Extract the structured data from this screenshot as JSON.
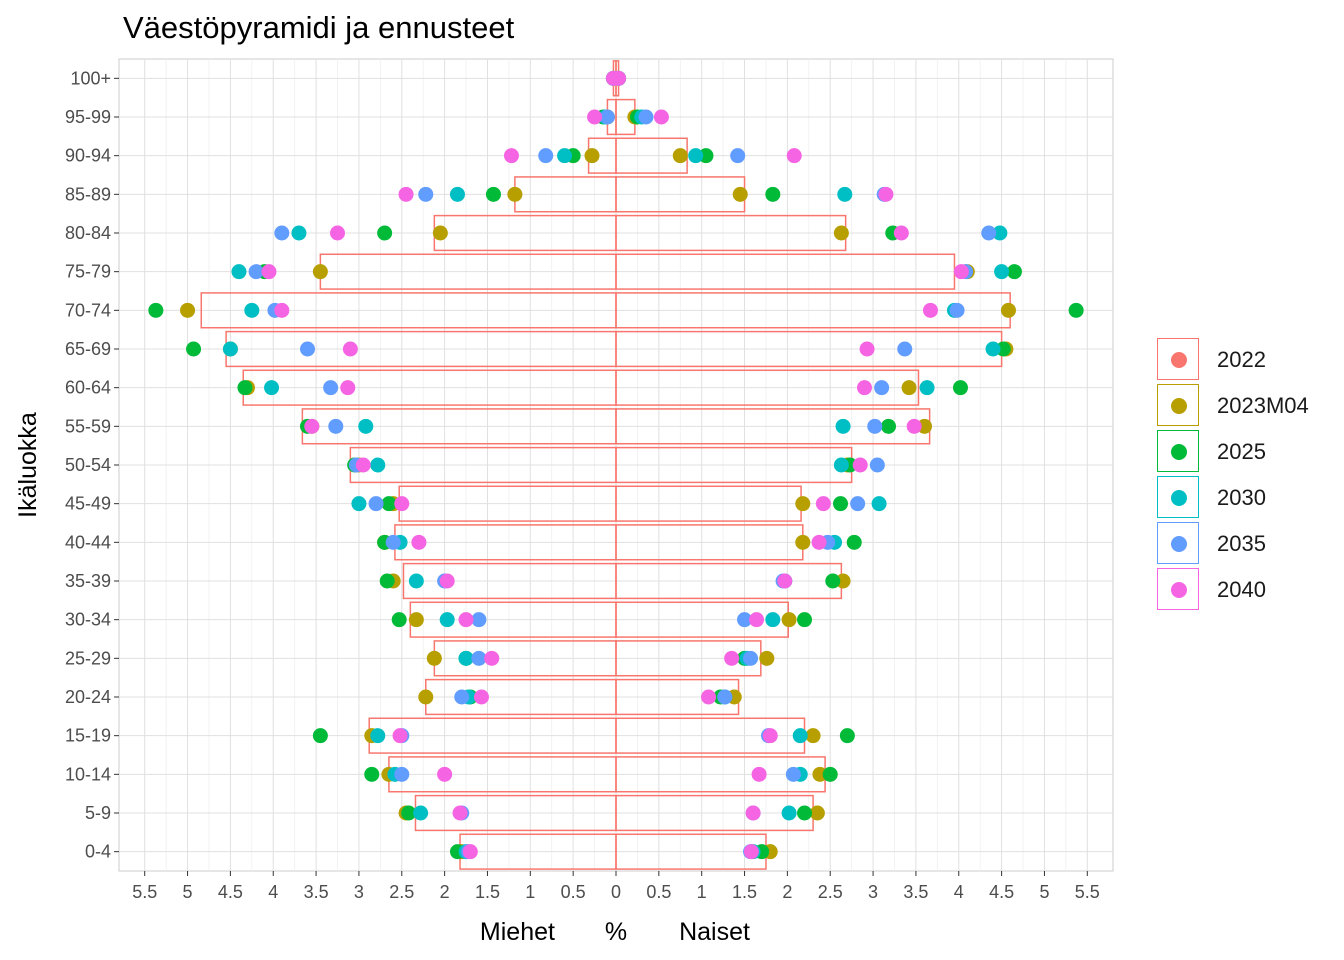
{
  "chart_data": {
    "type": "population-pyramid",
    "title": "Väestöpyramidi ja ennusteet",
    "xlabel_left": "Miehet",
    "xlabel_mid": "%",
    "xlabel_right": "Naiset",
    "ylabel": "Ikäluokka",
    "xlim": [
      -5.8,
      5.8
    ],
    "xticks": [
      -5.5,
      -5,
      -4.5,
      -4,
      -3.5,
      -3,
      -2.5,
      -2,
      -1.5,
      -1,
      -0.5,
      0,
      0.5,
      1,
      1.5,
      2,
      2.5,
      3,
      3.5,
      4,
      4.5,
      5,
      5.5
    ],
    "xtick_labels": [
      "5.5",
      "5",
      "4.5",
      "4",
      "3.5",
      "3",
      "2.5",
      "2",
      "1.5",
      "1",
      "0.5",
      "0",
      "0.5",
      "1",
      "1.5",
      "2",
      "2.5",
      "3",
      "3.5",
      "4",
      "4.5",
      "5",
      "5.5"
    ],
    "categories": [
      "0-4",
      "5-9",
      "10-14",
      "15-19",
      "20-24",
      "25-29",
      "30-34",
      "35-39",
      "40-44",
      "45-49",
      "50-54",
      "55-59",
      "60-64",
      "65-69",
      "70-74",
      "75-79",
      "80-84",
      "85-89",
      "90-94",
      "95-99",
      "100+"
    ],
    "grid": true,
    "legend_position": "right",
    "series_colors": {
      "2022": "#F8766D",
      "2023M04": "#B79F00",
      "2025": "#00BA38",
      "2030": "#00BFC4",
      "2035": "#619CFF",
      "2040": "#F564E3"
    },
    "bars": {
      "series": "2022",
      "men": [
        1.82,
        2.34,
        2.65,
        2.88,
        2.22,
        2.12,
        2.4,
        2.48,
        2.58,
        2.53,
        3.1,
        3.66,
        4.35,
        4.55,
        4.84,
        3.45,
        2.12,
        1.18,
        0.32,
        0.1,
        0.03
      ],
      "women": [
        1.75,
        2.3,
        2.44,
        2.2,
        1.43,
        1.69,
        2.01,
        2.63,
        2.18,
        2.16,
        2.75,
        3.66,
        3.53,
        4.5,
        4.6,
        3.95,
        2.68,
        1.5,
        0.83,
        0.22,
        0.03
      ]
    },
    "series": [
      {
        "name": "2023M04",
        "men": [
          1.8,
          2.45,
          2.65,
          2.85,
          2.22,
          2.12,
          2.33,
          2.6,
          2.7,
          2.6,
          3.0,
          3.55,
          4.3,
          4.5,
          5.0,
          3.45,
          2.05,
          1.18,
          0.28,
          0.1,
          0.03
        ],
        "women": [
          1.8,
          2.35,
          2.38,
          2.3,
          1.38,
          1.76,
          2.02,
          2.65,
          2.18,
          2.18,
          2.7,
          3.6,
          3.42,
          4.55,
          4.58,
          4.1,
          2.63,
          1.45,
          0.75,
          0.22,
          0.03
        ]
      },
      {
        "name": "2025",
        "men": [
          1.85,
          2.42,
          2.85,
          3.45,
          1.7,
          1.75,
          2.53,
          2.67,
          2.7,
          2.65,
          3.05,
          3.6,
          4.33,
          4.93,
          5.37,
          4.1,
          2.7,
          1.43,
          0.5,
          0.15,
          0.03
        ],
        "women": [
          1.7,
          2.2,
          2.5,
          2.7,
          1.22,
          1.5,
          2.2,
          2.53,
          2.78,
          2.62,
          2.73,
          3.18,
          4.02,
          4.52,
          5.37,
          4.65,
          3.23,
          1.83,
          1.05,
          0.25,
          0.03
        ]
      },
      {
        "name": "2030",
        "men": [
          1.75,
          2.28,
          2.58,
          2.78,
          1.72,
          1.75,
          1.97,
          2.33,
          2.52,
          3.0,
          2.78,
          2.92,
          4.02,
          4.5,
          4.25,
          4.4,
          3.7,
          1.85,
          0.6,
          0.12,
          0.03
        ],
        "women": [
          1.6,
          2.02,
          2.15,
          2.15,
          1.27,
          1.53,
          1.83,
          1.97,
          2.55,
          3.07,
          2.63,
          2.65,
          3.63,
          4.4,
          3.95,
          4.5,
          4.48,
          2.67,
          0.93,
          0.3,
          0.03
        ]
      },
      {
        "name": "2035",
        "men": [
          1.72,
          1.8,
          2.5,
          2.5,
          1.8,
          1.6,
          1.6,
          2.0,
          2.6,
          2.8,
          3.03,
          3.27,
          3.33,
          3.6,
          3.98,
          4.2,
          3.9,
          2.22,
          0.82,
          0.1,
          0.03
        ],
        "women": [
          1.57,
          1.6,
          2.07,
          1.78,
          1.27,
          1.57,
          1.5,
          1.95,
          2.47,
          2.82,
          3.05,
          3.02,
          3.1,
          3.37,
          3.98,
          4.08,
          4.35,
          3.13,
          1.42,
          0.35,
          0.03
        ]
      },
      {
        "name": "2040",
        "men": [
          1.7,
          1.82,
          2.0,
          2.52,
          1.57,
          1.45,
          1.75,
          1.97,
          2.3,
          2.5,
          2.95,
          3.55,
          3.13,
          3.1,
          3.9,
          4.05,
          3.25,
          2.45,
          1.22,
          0.25,
          0.03
        ],
        "women": [
          1.58,
          1.6,
          1.67,
          1.8,
          1.08,
          1.35,
          1.64,
          1.97,
          2.37,
          2.42,
          2.85,
          3.48,
          2.9,
          2.93,
          3.67,
          4.03,
          3.33,
          3.15,
          2.08,
          0.53,
          0.03
        ]
      }
    ],
    "legend": [
      "2022",
      "2023M04",
      "2025",
      "2030",
      "2035",
      "2040"
    ]
  }
}
